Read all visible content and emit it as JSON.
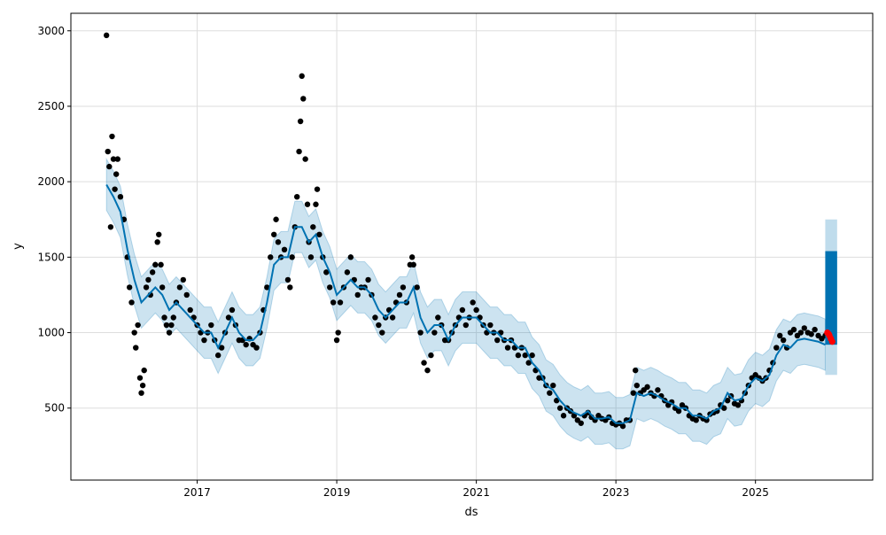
{
  "chart_data": {
    "type": "scatter",
    "title": "",
    "xlabel": "ds",
    "ylabel": "y",
    "xlim": [
      2015.19,
      2026.68
    ],
    "ylim": [
      23,
      3116
    ],
    "grid": true,
    "x_ticks": [
      {
        "value": 2017,
        "label": "2017"
      },
      {
        "value": 2019,
        "label": "2019"
      },
      {
        "value": 2021,
        "label": "2021"
      },
      {
        "value": 2023,
        "label": "2023"
      },
      {
        "value": 2025,
        "label": "2025"
      }
    ],
    "y_ticks": [
      {
        "value": 500,
        "label": "500"
      },
      {
        "value": 1000,
        "label": "1000"
      },
      {
        "value": 1500,
        "label": "1500"
      },
      {
        "value": 2000,
        "label": "2000"
      },
      {
        "value": 2500,
        "label": "2500"
      },
      {
        "value": 3000,
        "label": "3000"
      }
    ],
    "colors": {
      "observed": "#000000",
      "holdout": "#ff0000",
      "yhat": "#0072B2",
      "interval": "#0072B2"
    },
    "interval_halfwidth": 170,
    "observed": [
      [
        2015.7,
        2970
      ],
      [
        2015.72,
        2200
      ],
      [
        2015.74,
        2100
      ],
      [
        2015.76,
        1700
      ],
      [
        2015.78,
        2300
      ],
      [
        2015.8,
        2150
      ],
      [
        2015.82,
        1950
      ],
      [
        2015.84,
        2050
      ],
      [
        2015.86,
        2150
      ],
      [
        2015.9,
        1900
      ],
      [
        2015.95,
        1750
      ],
      [
        2016.0,
        1500
      ],
      [
        2016.03,
        1300
      ],
      [
        2016.06,
        1200
      ],
      [
        2016.1,
        1000
      ],
      [
        2016.12,
        900
      ],
      [
        2016.15,
        1050
      ],
      [
        2016.18,
        700
      ],
      [
        2016.2,
        600
      ],
      [
        2016.22,
        650
      ],
      [
        2016.24,
        750
      ],
      [
        2016.27,
        1300
      ],
      [
        2016.3,
        1350
      ],
      [
        2016.33,
        1250
      ],
      [
        2016.36,
        1400
      ],
      [
        2016.4,
        1450
      ],
      [
        2016.43,
        1600
      ],
      [
        2016.45,
        1650
      ],
      [
        2016.48,
        1450
      ],
      [
        2016.5,
        1300
      ],
      [
        2016.53,
        1100
      ],
      [
        2016.56,
        1050
      ],
      [
        2016.6,
        1000
      ],
      [
        2016.63,
        1050
      ],
      [
        2016.66,
        1100
      ],
      [
        2016.7,
        1200
      ],
      [
        2016.75,
        1300
      ],
      [
        2016.8,
        1350
      ],
      [
        2016.85,
        1250
      ],
      [
        2016.9,
        1150
      ],
      [
        2016.95,
        1100
      ],
      [
        2017.0,
        1050
      ],
      [
        2017.05,
        1000
      ],
      [
        2017.1,
        950
      ],
      [
        2017.15,
        1000
      ],
      [
        2017.2,
        1050
      ],
      [
        2017.25,
        950
      ],
      [
        2017.3,
        850
      ],
      [
        2017.35,
        900
      ],
      [
        2017.4,
        1000
      ],
      [
        2017.45,
        1100
      ],
      [
        2017.5,
        1150
      ],
      [
        2017.55,
        1050
      ],
      [
        2017.6,
        950
      ],
      [
        2017.65,
        950
      ],
      [
        2017.7,
        920
      ],
      [
        2017.75,
        960
      ],
      [
        2017.8,
        920
      ],
      [
        2017.85,
        900
      ],
      [
        2017.9,
        1000
      ],
      [
        2017.95,
        1150
      ],
      [
        2018.0,
        1300
      ],
      [
        2018.05,
        1500
      ],
      [
        2018.1,
        1650
      ],
      [
        2018.13,
        1750
      ],
      [
        2018.16,
        1600
      ],
      [
        2018.2,
        1500
      ],
      [
        2018.25,
        1550
      ],
      [
        2018.3,
        1350
      ],
      [
        2018.33,
        1300
      ],
      [
        2018.36,
        1500
      ],
      [
        2018.4,
        1700
      ],
      [
        2018.43,
        1900
      ],
      [
        2018.46,
        2200
      ],
      [
        2018.48,
        2400
      ],
      [
        2018.5,
        2700
      ],
      [
        2018.52,
        2550
      ],
      [
        2018.55,
        2150
      ],
      [
        2018.58,
        1850
      ],
      [
        2018.6,
        1600
      ],
      [
        2018.63,
        1500
      ],
      [
        2018.66,
        1700
      ],
      [
        2018.7,
        1850
      ],
      [
        2018.72,
        1950
      ],
      [
        2018.75,
        1650
      ],
      [
        2018.8,
        1500
      ],
      [
        2018.85,
        1400
      ],
      [
        2018.9,
        1300
      ],
      [
        2018.95,
        1200
      ],
      [
        2019.0,
        950
      ],
      [
        2019.02,
        1000
      ],
      [
        2019.05,
        1200
      ],
      [
        2019.1,
        1300
      ],
      [
        2019.15,
        1400
      ],
      [
        2019.2,
        1500
      ],
      [
        2019.25,
        1350
      ],
      [
        2019.3,
        1250
      ],
      [
        2019.35,
        1300
      ],
      [
        2019.4,
        1300
      ],
      [
        2019.45,
        1350
      ],
      [
        2019.5,
        1250
      ],
      [
        2019.55,
        1100
      ],
      [
        2019.6,
        1050
      ],
      [
        2019.65,
        1000
      ],
      [
        2019.7,
        1100
      ],
      [
        2019.75,
        1150
      ],
      [
        2019.8,
        1100
      ],
      [
        2019.85,
        1200
      ],
      [
        2019.9,
        1250
      ],
      [
        2019.95,
        1300
      ],
      [
        2020.0,
        1200
      ],
      [
        2020.05,
        1450
      ],
      [
        2020.08,
        1500
      ],
      [
        2020.1,
        1450
      ],
      [
        2020.15,
        1300
      ],
      [
        2020.2,
        1000
      ],
      [
        2020.25,
        800
      ],
      [
        2020.3,
        750
      ],
      [
        2020.35,
        850
      ],
      [
        2020.4,
        1000
      ],
      [
        2020.45,
        1100
      ],
      [
        2020.5,
        1050
      ],
      [
        2020.55,
        950
      ],
      [
        2020.6,
        950
      ],
      [
        2020.65,
        1000
      ],
      [
        2020.7,
        1050
      ],
      [
        2020.75,
        1100
      ],
      [
        2020.8,
        1150
      ],
      [
        2020.85,
        1050
      ],
      [
        2020.9,
        1100
      ],
      [
        2020.95,
        1200
      ],
      [
        2021.0,
        1150
      ],
      [
        2021.05,
        1100
      ],
      [
        2021.1,
        1050
      ],
      [
        2021.15,
        1000
      ],
      [
        2021.2,
        1050
      ],
      [
        2021.25,
        1000
      ],
      [
        2021.3,
        950
      ],
      [
        2021.35,
        1000
      ],
      [
        2021.4,
        950
      ],
      [
        2021.45,
        900
      ],
      [
        2021.5,
        950
      ],
      [
        2021.55,
        900
      ],
      [
        2021.6,
        850
      ],
      [
        2021.65,
        900
      ],
      [
        2021.7,
        850
      ],
      [
        2021.75,
        800
      ],
      [
        2021.8,
        850
      ],
      [
        2021.85,
        750
      ],
      [
        2021.9,
        700
      ],
      [
        2021.95,
        700
      ],
      [
        2022.0,
        650
      ],
      [
        2022.05,
        600
      ],
      [
        2022.1,
        650
      ],
      [
        2022.15,
        550
      ],
      [
        2022.2,
        500
      ],
      [
        2022.25,
        450
      ],
      [
        2022.3,
        500
      ],
      [
        2022.35,
        480
      ],
      [
        2022.4,
        450
      ],
      [
        2022.45,
        420
      ],
      [
        2022.5,
        400
      ],
      [
        2022.55,
        450
      ],
      [
        2022.6,
        470
      ],
      [
        2022.65,
        440
      ],
      [
        2022.7,
        420
      ],
      [
        2022.75,
        450
      ],
      [
        2022.8,
        430
      ],
      [
        2022.85,
        420
      ],
      [
        2022.9,
        440
      ],
      [
        2022.95,
        400
      ],
      [
        2023.0,
        390
      ],
      [
        2023.05,
        400
      ],
      [
        2023.1,
        380
      ],
      [
        2023.15,
        420
      ],
      [
        2023.2,
        420
      ],
      [
        2023.25,
        600
      ],
      [
        2023.28,
        750
      ],
      [
        2023.3,
        650
      ],
      [
        2023.35,
        600
      ],
      [
        2023.4,
        620
      ],
      [
        2023.45,
        640
      ],
      [
        2023.5,
        600
      ],
      [
        2023.55,
        580
      ],
      [
        2023.6,
        620
      ],
      [
        2023.65,
        580
      ],
      [
        2023.7,
        550
      ],
      [
        2023.75,
        520
      ],
      [
        2023.8,
        540
      ],
      [
        2023.85,
        500
      ],
      [
        2023.9,
        480
      ],
      [
        2023.95,
        520
      ],
      [
        2024.0,
        500
      ],
      [
        2024.05,
        450
      ],
      [
        2024.1,
        430
      ],
      [
        2024.15,
        420
      ],
      [
        2024.2,
        450
      ],
      [
        2024.25,
        430
      ],
      [
        2024.3,
        420
      ],
      [
        2024.35,
        460
      ],
      [
        2024.4,
        470
      ],
      [
        2024.45,
        480
      ],
      [
        2024.5,
        520
      ],
      [
        2024.55,
        500
      ],
      [
        2024.6,
        550
      ],
      [
        2024.65,
        580
      ],
      [
        2024.7,
        530
      ],
      [
        2024.75,
        520
      ],
      [
        2024.8,
        550
      ],
      [
        2024.85,
        600
      ],
      [
        2024.9,
        650
      ],
      [
        2024.95,
        700
      ],
      [
        2025.0,
        720
      ],
      [
        2025.05,
        700
      ],
      [
        2025.1,
        680
      ],
      [
        2025.15,
        700
      ],
      [
        2025.2,
        750
      ],
      [
        2025.25,
        800
      ],
      [
        2025.3,
        900
      ],
      [
        2025.35,
        980
      ],
      [
        2025.4,
        950
      ],
      [
        2025.45,
        900
      ],
      [
        2025.5,
        1000
      ],
      [
        2025.55,
        1020
      ],
      [
        2025.6,
        980
      ],
      [
        2025.65,
        1000
      ],
      [
        2025.7,
        1030
      ],
      [
        2025.75,
        1000
      ],
      [
        2025.8,
        990
      ],
      [
        2025.85,
        1020
      ],
      [
        2025.9,
        980
      ],
      [
        2025.95,
        960
      ],
      [
        2026.0,
        980
      ]
    ],
    "holdout": [
      [
        2026.03,
        1000
      ],
      [
        2026.05,
        990
      ],
      [
        2026.06,
        980
      ],
      [
        2026.08,
        960
      ],
      [
        2026.1,
        940
      ]
    ],
    "yhat": [
      [
        2015.7,
        1980
      ],
      [
        2015.8,
        1900
      ],
      [
        2015.9,
        1800
      ],
      [
        2016.0,
        1550
      ],
      [
        2016.1,
        1350
      ],
      [
        2016.2,
        1200
      ],
      [
        2016.3,
        1250
      ],
      [
        2016.4,
        1300
      ],
      [
        2016.5,
        1250
      ],
      [
        2016.6,
        1150
      ],
      [
        2016.7,
        1200
      ],
      [
        2016.8,
        1150
      ],
      [
        2016.9,
        1100
      ],
      [
        2017.0,
        1050
      ],
      [
        2017.1,
        1000
      ],
      [
        2017.2,
        1000
      ],
      [
        2017.3,
        900
      ],
      [
        2017.4,
        1000
      ],
      [
        2017.5,
        1100
      ],
      [
        2017.6,
        1000
      ],
      [
        2017.7,
        950
      ],
      [
        2017.8,
        950
      ],
      [
        2017.9,
        1000
      ],
      [
        2018.0,
        1200
      ],
      [
        2018.1,
        1450
      ],
      [
        2018.2,
        1500
      ],
      [
        2018.3,
        1500
      ],
      [
        2018.4,
        1700
      ],
      [
        2018.5,
        1700
      ],
      [
        2018.6,
        1600
      ],
      [
        2018.7,
        1650
      ],
      [
        2018.8,
        1500
      ],
      [
        2018.9,
        1400
      ],
      [
        2019.0,
        1250
      ],
      [
        2019.1,
        1300
      ],
      [
        2019.2,
        1350
      ],
      [
        2019.3,
        1300
      ],
      [
        2019.4,
        1300
      ],
      [
        2019.5,
        1250
      ],
      [
        2019.6,
        1150
      ],
      [
        2019.7,
        1100
      ],
      [
        2019.8,
        1150
      ],
      [
        2019.9,
        1200
      ],
      [
        2020.0,
        1200
      ],
      [
        2020.1,
        1300
      ],
      [
        2020.2,
        1100
      ],
      [
        2020.3,
        1000
      ],
      [
        2020.4,
        1050
      ],
      [
        2020.5,
        1050
      ],
      [
        2020.6,
        950
      ],
      [
        2020.7,
        1050
      ],
      [
        2020.8,
        1100
      ],
      [
        2020.9,
        1100
      ],
      [
        2021.0,
        1100
      ],
      [
        2021.1,
        1050
      ],
      [
        2021.2,
        1000
      ],
      [
        2021.3,
        1000
      ],
      [
        2021.4,
        950
      ],
      [
        2021.5,
        950
      ],
      [
        2021.6,
        900
      ],
      [
        2021.7,
        900
      ],
      [
        2021.8,
        800
      ],
      [
        2021.9,
        750
      ],
      [
        2022.0,
        650
      ],
      [
        2022.1,
        620
      ],
      [
        2022.2,
        550
      ],
      [
        2022.3,
        500
      ],
      [
        2022.4,
        470
      ],
      [
        2022.5,
        450
      ],
      [
        2022.6,
        480
      ],
      [
        2022.7,
        430
      ],
      [
        2022.8,
        430
      ],
      [
        2022.9,
        440
      ],
      [
        2023.0,
        400
      ],
      [
        2023.1,
        400
      ],
      [
        2023.2,
        420
      ],
      [
        2023.3,
        600
      ],
      [
        2023.4,
        580
      ],
      [
        2023.5,
        600
      ],
      [
        2023.6,
        580
      ],
      [
        2023.7,
        550
      ],
      [
        2023.8,
        530
      ],
      [
        2023.9,
        500
      ],
      [
        2024.0,
        500
      ],
      [
        2024.1,
        450
      ],
      [
        2024.2,
        450
      ],
      [
        2024.3,
        430
      ],
      [
        2024.4,
        480
      ],
      [
        2024.5,
        500
      ],
      [
        2024.6,
        600
      ],
      [
        2024.7,
        550
      ],
      [
        2024.8,
        560
      ],
      [
        2024.9,
        650
      ],
      [
        2025.0,
        700
      ],
      [
        2025.1,
        680
      ],
      [
        2025.2,
        720
      ],
      [
        2025.3,
        850
      ],
      [
        2025.4,
        920
      ],
      [
        2025.5,
        900
      ],
      [
        2025.6,
        950
      ],
      [
        2025.7,
        960
      ],
      [
        2025.8,
        950
      ],
      [
        2025.9,
        940
      ],
      [
        2026.0,
        920
      ]
    ],
    "forecast": {
      "x_start": 2026.0,
      "x_end": 2026.17,
      "yhat_min": 920,
      "yhat_max": 1540,
      "lower": 720,
      "upper": 1750
    }
  }
}
